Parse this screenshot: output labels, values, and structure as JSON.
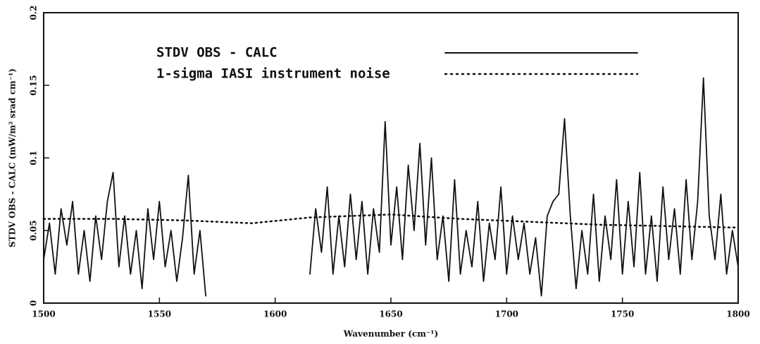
{
  "chart_data": {
    "type": "line",
    "x_label": "Wavenumber (cm⁻¹)",
    "y_label": "STDV OBS - CALC (mW/m² srad cm⁻¹)",
    "xlim": [
      1500,
      1800
    ],
    "xticks": [
      1500,
      1550,
      1600,
      1650,
      1700,
      1750,
      1800
    ],
    "ylim": [
      0,
      0.2
    ],
    "yticks": [
      0,
      0.05,
      0.1,
      0.15,
      0.2
    ],
    "series": [
      {
        "name": "STDV OBS - CALC",
        "color": "#111111",
        "style": "solid",
        "x": [
          1500,
          1502.5,
          1505,
          1507.5,
          1510,
          1512.5,
          1515,
          1517.5,
          1520,
          1522.5,
          1525,
          1527.5,
          1530,
          1532.5,
          1535,
          1537.5,
          1540,
          1542.5,
          1545,
          1547.5,
          1550,
          1552.5,
          1555,
          1557.5,
          1560,
          1562.5,
          1565,
          1567.5,
          1570,
          1572.5,
          1575,
          1577.5,
          1580,
          1582.5,
          1585,
          1587.5,
          1590,
          1592.5,
          1595,
          1597.5,
          1600,
          1602.5,
          1605,
          1607.5,
          1610,
          1612.5,
          1615,
          1617.5,
          1620,
          1622.5,
          1625,
          1627.5,
          1630,
          1632.5,
          1635,
          1637.5,
          1640,
          1642.5,
          1645,
          1647.5,
          1650,
          1652.5,
          1655,
          1657.5,
          1660,
          1662.5,
          1665,
          1667.5,
          1670,
          1672.5,
          1675,
          1677.5,
          1680,
          1682.5,
          1685,
          1687.5,
          1690,
          1692.5,
          1695,
          1697.5,
          1700,
          1702.5,
          1705,
          1707.5,
          1710,
          1712.5,
          1715,
          1717.5,
          1720,
          1722.5,
          1725,
          1727.5,
          1730,
          1732.5,
          1735,
          1737.5,
          1740,
          1742.5,
          1745,
          1747.5,
          1750,
          1752.5,
          1755,
          1757.5,
          1760,
          1762.5,
          1765,
          1767.5,
          1770,
          1772.5,
          1775,
          1777.5,
          1780,
          1782.5,
          1785,
          1787.5,
          1790,
          1792.5,
          1795,
          1797.5,
          1800
        ],
        "values": [
          0.03,
          0.055,
          0.02,
          0.065,
          0.04,
          0.07,
          0.02,
          0.05,
          0.015,
          0.06,
          0.03,
          0.07,
          0.09,
          0.025,
          0.06,
          0.02,
          0.05,
          0.01,
          0.065,
          0.03,
          0.07,
          0.025,
          0.05,
          0.015,
          0.045,
          0.088,
          0.02,
          0.05,
          0.005,
          null,
          null,
          null,
          null,
          null,
          null,
          null,
          null,
          null,
          null,
          null,
          null,
          null,
          null,
          null,
          null,
          null,
          0.02,
          0.065,
          0.035,
          0.08,
          0.02,
          0.06,
          0.025,
          0.075,
          0.03,
          0.07,
          0.02,
          0.065,
          0.035,
          0.125,
          0.04,
          0.08,
          0.03,
          0.095,
          0.05,
          0.11,
          0.04,
          0.1,
          0.03,
          0.06,
          0.015,
          0.085,
          0.02,
          0.05,
          0.025,
          0.07,
          0.015,
          0.055,
          0.03,
          0.08,
          0.02,
          0.06,
          0.03,
          0.055,
          0.02,
          0.045,
          0.005,
          0.06,
          0.07,
          0.075,
          0.127,
          0.06,
          0.01,
          0.05,
          0.02,
          0.075,
          0.015,
          0.06,
          0.03,
          0.085,
          0.02,
          0.07,
          0.025,
          0.09,
          0.02,
          0.06,
          0.015,
          0.08,
          0.03,
          0.065,
          0.02,
          0.085,
          0.03,
          0.07,
          0.155,
          0.06,
          0.03,
          0.075,
          0.02,
          0.05,
          0.025
        ]
      },
      {
        "name": "1-sigma IASI instrument noise",
        "color": "#111111",
        "style": "dotted",
        "x": [
          1500,
          1530,
          1560,
          1590,
          1615,
          1650,
          1680,
          1710,
          1740,
          1770,
          1800
        ],
        "values": [
          0.058,
          0.058,
          0.057,
          0.055,
          0.059,
          0.061,
          0.058,
          0.056,
          0.054,
          0.053,
          0.052
        ]
      }
    ]
  }
}
